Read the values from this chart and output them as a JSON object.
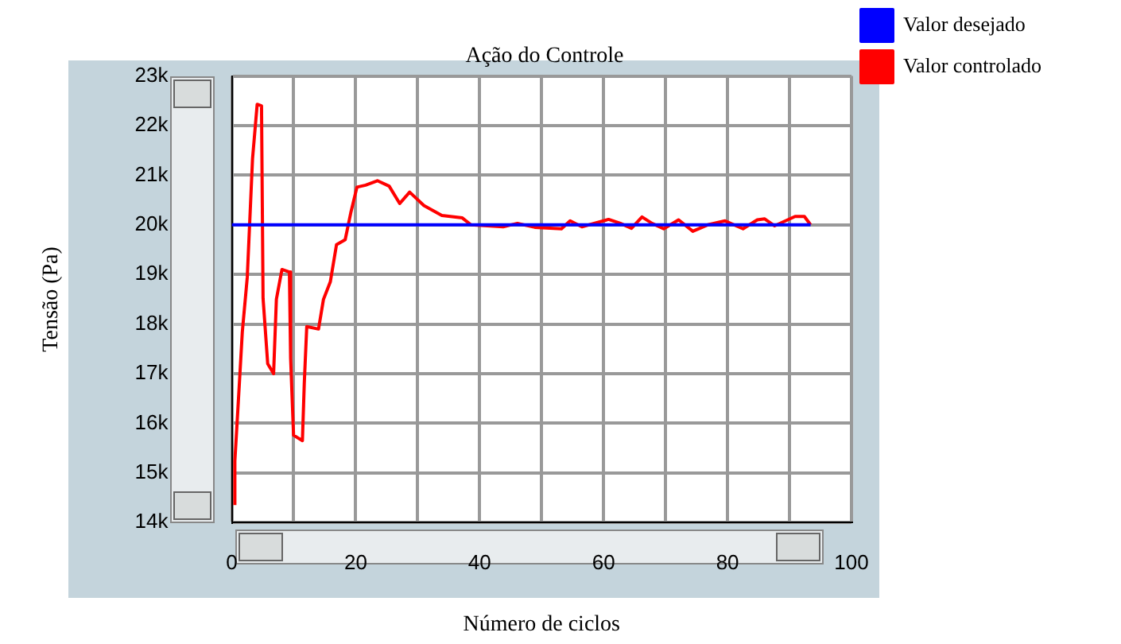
{
  "chart_data": {
    "type": "line",
    "title": "Ação do Controle",
    "xlabel": "Número de ciclos",
    "ylabel": "Tensão (Pa)",
    "xlim": [
      0,
      100
    ],
    "xticks": [
      0,
      {
        "value": 10,
        "label": null
      },
      20,
      {
        "value": 30,
        "label": null
      },
      40,
      {
        "value": 50,
        "label": null
      },
      60,
      {
        "value": 70,
        "label": null
      },
      80,
      {
        "value": 90,
        "label": null
      },
      100
    ],
    "ylim": [
      14000,
      23000
    ],
    "yticks": [
      {
        "value": 14000,
        "label": "14k"
      },
      {
        "value": 15000,
        "label": "15k"
      },
      {
        "value": 16000,
        "label": "16k"
      },
      {
        "value": 17000,
        "label": "17k"
      },
      {
        "value": 18000,
        "label": "18k"
      },
      {
        "value": 19000,
        "label": "19k"
      },
      {
        "value": 20000,
        "label": "20k"
      },
      {
        "value": 21000,
        "label": "21k"
      },
      {
        "value": 22000,
        "label": "22k"
      },
      {
        "value": 23000,
        "label": "23k"
      }
    ],
    "grid": true,
    "legend": "top right",
    "marker": "none",
    "line_style": "solid",
    "series": [
      {
        "name": "Valor desejado",
        "color": "#0000ff",
        "x": [
          0,
          93.4
        ],
        "values": [
          20000,
          20000
        ]
      },
      {
        "name": "Valor controlado",
        "color": "#ff0000",
        "x": [
          0.5,
          0.5,
          1.3,
          1.7,
          2.5,
          3.35,
          4.1,
          4.8,
          5.05,
          5.8,
          6.75,
          7.2,
          8.1,
          9.3,
          9.5,
          9.97,
          11.4,
          11.7,
          12.1,
          14.0,
          14.8,
          15.9,
          16.9,
          18.3,
          19.2,
          20.2,
          21.6,
          23.5,
          25.4,
          27.1,
          28.7,
          31,
          33.9,
          37.2,
          38.6,
          43.8,
          46.1,
          48.9,
          53.2,
          54.6,
          56.5,
          60.8,
          62.7,
          64.5,
          66.2,
          67.8,
          69.7,
          72.1,
          74.4,
          76.8,
          79.6,
          82.5,
          84.8,
          86,
          87.6,
          90.9,
          92.4,
          93.4
        ],
        "values": [
          14350,
          15240,
          16960,
          17840,
          18940,
          21330,
          22430,
          22400,
          18520,
          17200,
          17000,
          18500,
          19100,
          19050,
          17300,
          15760,
          15650,
          16800,
          17950,
          17900,
          18500,
          18850,
          19600,
          19700,
          20240,
          20760,
          20800,
          20890,
          20780,
          20430,
          20660,
          20390,
          20190,
          20140,
          20000,
          19960,
          20030,
          19950,
          19920,
          20080,
          19960,
          20110,
          20030,
          19930,
          20160,
          20030,
          19920,
          20100,
          19870,
          20000,
          20080,
          19920,
          20100,
          20120,
          19980,
          20170,
          20170,
          20000
        ]
      }
    ]
  }
}
